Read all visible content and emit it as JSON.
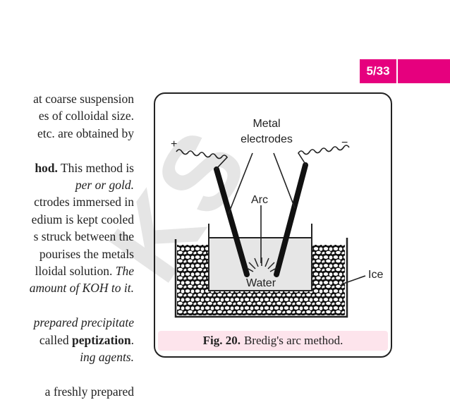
{
  "page_badge": "5/33",
  "body_lines": [
    [
      {
        "t": "at coarse suspension",
        "s": ""
      }
    ],
    [
      {
        "t": "es of colloidal size.",
        "s": ""
      }
    ],
    [
      {
        "t": "etc. are obtained by",
        "s": ""
      }
    ],
    [
      {
        "t": "",
        "s": ""
      }
    ],
    [
      {
        "t": "hod.",
        "s": "b"
      },
      {
        "t": " This method is",
        "s": ""
      }
    ],
    [
      {
        "t": "per or gold.",
        "s": "i"
      }
    ],
    [
      {
        "t": "ctrodes immersed in",
        "s": ""
      }
    ],
    [
      {
        "t": "edium is kept cooled",
        "s": ""
      }
    ],
    [
      {
        "t": "s struck between the",
        "s": ""
      }
    ],
    [
      {
        "t": "pourises the metals",
        "s": ""
      }
    ],
    [
      {
        "t": "lloidal solution. ",
        "s": ""
      },
      {
        "t": "The",
        "s": "i"
      }
    ],
    [
      {
        "t": "amount of KOH to it.",
        "s": "i"
      }
    ],
    [
      {
        "t": "",
        "s": ""
      }
    ],
    [
      {
        "t": "prepared precipitate",
        "s": "i"
      }
    ],
    [
      {
        "t": "called ",
        "s": ""
      },
      {
        "t": "peptization",
        "s": "b"
      },
      {
        "t": ".",
        "s": ""
      }
    ],
    [
      {
        "t": "ing agents.",
        "s": "i"
      }
    ],
    [
      {
        "t": "",
        "s": ""
      }
    ],
    [
      {
        "t": "a freshly prepared",
        "s": ""
      }
    ]
  ],
  "figure": {
    "labels": {
      "metal": "Metal",
      "electrodes": "electrodes",
      "arc": "Arc",
      "water": "Water",
      "ice": "Ice",
      "plus": "+",
      "minus": "−"
    },
    "caption_bold": "Fig. 20.",
    "caption_text": "Bredig's arc method."
  },
  "watermark": "KS"
}
